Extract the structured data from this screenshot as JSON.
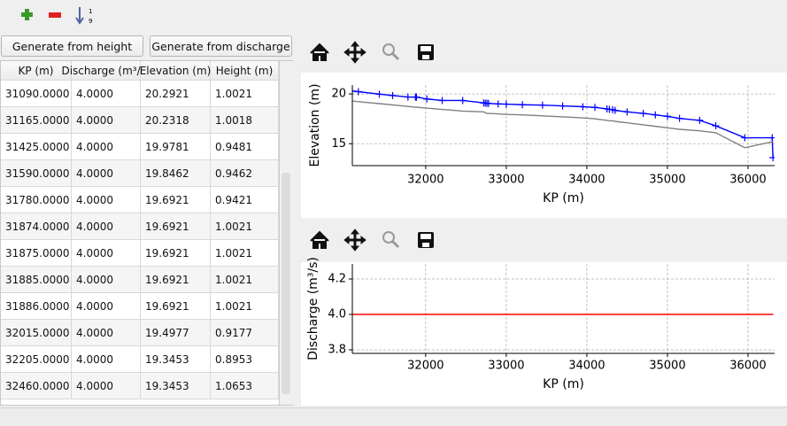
{
  "buttons": [
    "Generate from height",
    "Generate from discharge"
  ],
  "table": {
    "headers": [
      "KP (m)",
      "Discharge (m³/s)",
      "Elevation (m)",
      "Height (m)"
    ],
    "rows": [
      [
        "31090.0000",
        "4.0000",
        "20.2921",
        "1.0021"
      ],
      [
        "31165.0000",
        "4.0000",
        "20.2318",
        "1.0018"
      ],
      [
        "31425.0000",
        "4.0000",
        "19.9781",
        "0.9481"
      ],
      [
        "31590.0000",
        "4.0000",
        "19.8462",
        "0.9462"
      ],
      [
        "31780.0000",
        "4.0000",
        "19.6921",
        "0.9421"
      ],
      [
        "31874.0000",
        "4.0000",
        "19.6921",
        "1.0021"
      ],
      [
        "31875.0000",
        "4.0000",
        "19.6921",
        "1.0021"
      ],
      [
        "31885.0000",
        "4.0000",
        "19.6921",
        "1.0021"
      ],
      [
        "31886.0000",
        "4.0000",
        "19.6921",
        "1.0021"
      ],
      [
        "32015.0000",
        "4.0000",
        "19.4977",
        "0.9177"
      ],
      [
        "32205.0000",
        "4.0000",
        "19.3453",
        "0.8953"
      ],
      [
        "32460.0000",
        "4.0000",
        "19.3453",
        "1.0653"
      ]
    ]
  },
  "chart_data": [
    {
      "type": "line",
      "x_label": "KP (m)",
      "y_label": "Elevation (m)",
      "x": [
        31090,
        31165,
        31425,
        31590,
        31780,
        31874,
        31875,
        31885,
        31886,
        32015,
        32205,
        32460,
        32720,
        32740,
        32760,
        32780,
        32900,
        33000,
        33200,
        33450,
        33700,
        33950,
        34100,
        34250,
        34280,
        34320,
        34350,
        34500,
        34700,
        34850,
        35000,
        35150,
        35400,
        35600,
        35960,
        36300,
        36310
      ],
      "series": [
        {
          "color": "#0000ff",
          "marker": "+",
          "values": [
            20.2921,
            20.2318,
            19.9781,
            19.8462,
            19.6921,
            19.6921,
            19.6921,
            19.6921,
            19.6921,
            19.4977,
            19.3453,
            19.3453,
            19.1,
            19.08,
            19.06,
            19.05,
            19.0,
            18.98,
            18.92,
            18.88,
            18.8,
            18.72,
            18.65,
            18.5,
            18.45,
            18.42,
            18.35,
            18.2,
            18.05,
            17.9,
            17.75,
            17.55,
            17.35,
            16.8,
            15.6,
            15.6,
            13.6
          ]
        },
        {
          "color": "#808080",
          "values": [
            19.29,
            19.23,
            19.03,
            18.9,
            18.75,
            18.67,
            18.67,
            18.67,
            18.67,
            18.58,
            18.45,
            18.28,
            18.2,
            18.1,
            18.05,
            18.05,
            18.0,
            17.95,
            17.9,
            17.8,
            17.7,
            17.6,
            17.5,
            17.35,
            17.3,
            17.3,
            17.25,
            17.1,
            16.9,
            16.75,
            16.6,
            16.45,
            16.3,
            16.1,
            14.6,
            15.2,
            15.2
          ]
        }
      ],
      "xlim": [
        31090,
        36330
      ],
      "xticks": [
        32000,
        33000,
        34000,
        35000,
        36000
      ],
      "ylim": [
        12.8,
        20.9
      ],
      "yticks": [
        15,
        20
      ],
      "grid": true
    },
    {
      "type": "line",
      "x_label": "KP (m)",
      "y_label": "Discharge (m³/s)",
      "x": [
        31090,
        36310
      ],
      "series": [
        {
          "color": "#ff0000",
          "values": [
            4,
            4
          ]
        }
      ],
      "xlim": [
        31090,
        36330
      ],
      "xticks": [
        32000,
        33000,
        34000,
        35000,
        36000
      ],
      "ylim": [
        3.78,
        4.285
      ],
      "yticks": [
        3.8,
        {
          "value": 4,
          "label": "4.0"
        },
        4.2
      ],
      "grid": true
    }
  ]
}
